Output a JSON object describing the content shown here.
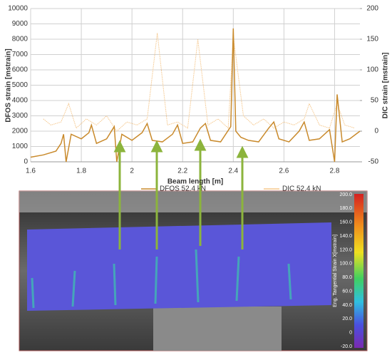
{
  "chart_data": {
    "type": "line",
    "x_label": "Beam length [m]",
    "y_label": "DFOS strain [mstrain]",
    "y2_label": "DIC strain [mstrain]",
    "xlim": [
      1.6,
      2.9
    ],
    "xticks": [
      1.6,
      1.8,
      2,
      2.2,
      2.4,
      2.6,
      2.8
    ],
    "ylim": [
      0,
      10000
    ],
    "yticks": [
      0,
      1000,
      2000,
      3000,
      4000,
      5000,
      6000,
      7000,
      8000,
      9000,
      10000
    ],
    "y2lim": [
      -50,
      200
    ],
    "y2ticks": [
      -50,
      0,
      50,
      100,
      150,
      200
    ],
    "grid": true,
    "legend": "bottom",
    "series": [
      {
        "name": "DFOS 52.4 kN",
        "color": "#c98a2c",
        "x": [
          1.6,
          1.65,
          1.7,
          1.72,
          1.73,
          1.74,
          1.76,
          1.8,
          1.83,
          1.84,
          1.86,
          1.9,
          1.93,
          1.94,
          1.96,
          2.0,
          2.04,
          2.06,
          2.08,
          2.12,
          2.16,
          2.18,
          2.2,
          2.24,
          2.27,
          2.29,
          2.31,
          2.35,
          2.39,
          2.4,
          2.41,
          2.43,
          2.46,
          2.5,
          2.54,
          2.56,
          2.58,
          2.62,
          2.66,
          2.68,
          2.7,
          2.74,
          2.78,
          2.8,
          2.81,
          2.83,
          2.86,
          2.9
        ],
        "values": [
          300,
          450,
          700,
          1200,
          1800,
          0,
          1800,
          1500,
          1900,
          2400,
          1200,
          1500,
          2300,
          0,
          1800,
          1400,
          1900,
          2500,
          1400,
          1300,
          1800,
          2400,
          1200,
          1300,
          2200,
          2500,
          1400,
          1300,
          2300,
          8700,
          2000,
          1600,
          1400,
          1300,
          2200,
          2600,
          1500,
          1300,
          2000,
          2600,
          1400,
          1500,
          2100,
          0,
          4400,
          1300,
          1500,
          2000
        ]
      },
      {
        "name": "DIC 52.4 kN",
        "color": "#f5c78c",
        "axis": "y2",
        "x": [
          1.65,
          1.68,
          1.72,
          1.75,
          1.78,
          1.82,
          1.86,
          1.9,
          1.94,
          1.98,
          2.02,
          2.06,
          2.1,
          2.14,
          2.18,
          2.22,
          2.26,
          2.3,
          2.34,
          2.38,
          2.4,
          2.44,
          2.48,
          2.52,
          2.56,
          2.6,
          2.64,
          2.68,
          2.7,
          2.74,
          2.78,
          2.81,
          2.84,
          2.88
        ],
        "values": [
          20,
          10,
          15,
          45,
          5,
          20,
          10,
          25,
          0,
          15,
          10,
          20,
          160,
          10,
          15,
          5,
          150,
          10,
          20,
          5,
          155,
          25,
          10,
          20,
          5,
          15,
          10,
          20,
          45,
          10,
          5,
          45,
          10,
          5
        ]
      }
    ]
  },
  "image": {
    "colorbar_title": "Eng. Tangential Strain X[mstrain]",
    "colorbar_labels": [
      "200.0",
      "180.0",
      "160.0",
      "140.0",
      "120.0",
      "100.0",
      "80.0",
      "60.0",
      "40.0",
      "20.0",
      "0",
      "-20.0"
    ]
  }
}
